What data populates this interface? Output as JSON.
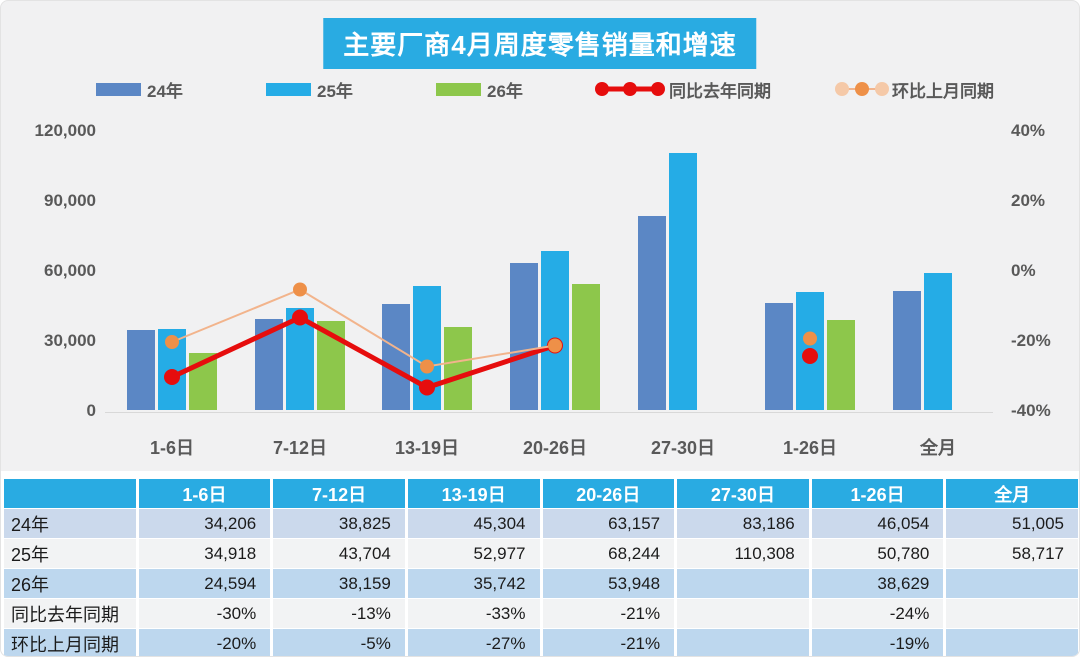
{
  "title": "主要厂商4月周度零售销量和增速",
  "colors": {
    "banner_bg": "#29abe2",
    "bar_24": "#5b87c5",
    "bar_25": "#25ace6",
    "bar_26": "#8dc74b",
    "line_yoy": "#e60d0d",
    "line_mom_stroke": "#f2b48c",
    "line_mom_dot": "#ee9048",
    "axis_text": "#595959",
    "table_header_bg": "#29abe2"
  },
  "legend": [
    {
      "label": "24年",
      "type": "swatch",
      "color": "#5b87c5"
    },
    {
      "label": "25年",
      "type": "swatch",
      "color": "#25ace6"
    },
    {
      "label": "26年",
      "type": "swatch",
      "color": "#8dc74b"
    },
    {
      "label": "同比去年同期",
      "type": "line",
      "color": "#e60d0d",
      "dot_color": "#e60d0d"
    },
    {
      "label": "环比上月同期",
      "type": "line",
      "color": "#f2b48c",
      "dot_color": "#ee9048"
    }
  ],
  "chart_data": {
    "type": "bar",
    "categories": [
      "1-6日",
      "7-12日",
      "13-19日",
      "20-26日",
      "27-30日",
      "1-26日",
      "全月"
    ],
    "series": [
      {
        "name": "24年",
        "color": "#5b87c5",
        "values": [
          34206,
          38825,
          45304,
          63157,
          83186,
          46054,
          51005
        ]
      },
      {
        "name": "25年",
        "color": "#25ace6",
        "values": [
          34918,
          43704,
          52977,
          68244,
          110308,
          50780,
          58717
        ]
      },
      {
        "name": "26年",
        "color": "#8dc74b",
        "values": [
          24594,
          38159,
          35742,
          53948,
          null,
          38629,
          null
        ]
      }
    ],
    "line_series": [
      {
        "name": "同比去年同期",
        "stroke": "#e60d0d",
        "dot_color": "#e60d0d",
        "stroke_width": 5,
        "dot_r": 8,
        "values_pct": [
          -30,
          -13,
          -33,
          -21,
          null,
          -24,
          null
        ],
        "connect_through": 3
      },
      {
        "name": "环比上月同期",
        "stroke": "#f2b48c",
        "dot_color": "#ee9048",
        "stroke_width": 2,
        "dot_r": 7,
        "values_pct": [
          -20,
          -5,
          -27,
          -21,
          null,
          -19,
          null
        ],
        "connect_through": 3
      }
    ],
    "left_axis": {
      "label": "",
      "ticks": [
        "120,000",
        "90,000",
        "60,000",
        "30,000",
        "0"
      ],
      "min": 0,
      "max": 120000
    },
    "right_axis": {
      "label": "",
      "ticks": [
        "40%",
        "20%",
        "0%",
        "-20%",
        "-40%"
      ],
      "min": -40,
      "max": 40
    },
    "grid": false,
    "legend_position": "top"
  },
  "table": {
    "headers": [
      "",
      "1-6日",
      "7-12日",
      "13-19日",
      "20-26日",
      "27-30日",
      "1-26日",
      "全月"
    ],
    "rows": [
      {
        "label": "24年",
        "values": [
          "34,206",
          "38,825",
          "45,304",
          "63,157",
          "83,186",
          "46,054",
          "51,005"
        ]
      },
      {
        "label": "25年",
        "values": [
          "34,918",
          "43,704",
          "52,977",
          "68,244",
          "110,308",
          "50,780",
          "58,717"
        ]
      },
      {
        "label": "26年",
        "values": [
          "24,594",
          "38,159",
          "35,742",
          "53,948",
          "",
          "38,629",
          ""
        ]
      },
      {
        "label": "同比去年同期",
        "values": [
          "-30%",
          "-13%",
          "-33%",
          "-21%",
          "",
          "-24%",
          ""
        ]
      },
      {
        "label": "环比上月同期",
        "values": [
          "-20%",
          "-5%",
          "-27%",
          "-21%",
          "",
          "-19%",
          ""
        ]
      }
    ],
    "row_colors": [
      "#cbd9ec",
      "#f2f3f4",
      "#bdd7ee",
      "#f2f3f4",
      "#bdd7ee"
    ]
  }
}
